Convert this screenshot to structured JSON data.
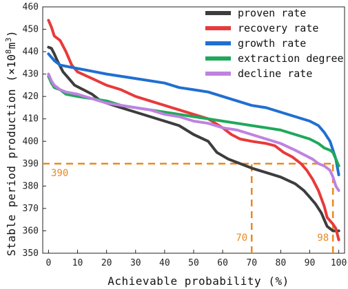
{
  "chart_data": {
    "type": "line",
    "xlabel": "Achievable probability (%)",
    "ylabel_main": "Stable period production (×10",
    "ylabel_exp": "8",
    "ylabel_unit": "m",
    "ylabel_unit_exp": "3",
    "ylabel_close": ")",
    "xlim": [
      -2,
      102
    ],
    "ylim": [
      350,
      460
    ],
    "x_ticks": [
      0,
      10,
      20,
      30,
      40,
      50,
      60,
      70,
      80,
      90,
      100
    ],
    "y_ticks": [
      350,
      360,
      370,
      380,
      390,
      400,
      410,
      420,
      430,
      440,
      450,
      460
    ],
    "legend_position": "top-right",
    "series": [
      {
        "name": "proven rate",
        "color": "#3d3d3d",
        "points": [
          [
            0,
            442
          ],
          [
            1,
            441.5
          ],
          [
            2,
            439
          ],
          [
            3,
            436
          ],
          [
            5,
            431
          ],
          [
            7,
            428
          ],
          [
            9,
            425
          ],
          [
            12,
            423
          ],
          [
            15,
            421
          ],
          [
            18,
            418
          ],
          [
            20,
            417
          ],
          [
            25,
            415
          ],
          [
            30,
            413
          ],
          [
            35,
            411
          ],
          [
            40,
            409
          ],
          [
            45,
            407
          ],
          [
            50,
            403
          ],
          [
            55,
            400
          ],
          [
            58,
            395
          ],
          [
            62,
            392
          ],
          [
            66,
            390
          ],
          [
            70,
            388
          ],
          [
            75,
            386
          ],
          [
            80,
            384
          ],
          [
            85,
            381
          ],
          [
            88,
            378
          ],
          [
            90,
            375
          ],
          [
            92,
            372
          ],
          [
            94,
            368
          ],
          [
            96,
            362
          ],
          [
            98,
            360
          ],
          [
            100,
            360
          ]
        ]
      },
      {
        "name": "recovery rate",
        "color": "#e83a3a",
        "points": [
          [
            0,
            454
          ],
          [
            1,
            451
          ],
          [
            2,
            447
          ],
          [
            4,
            445
          ],
          [
            6,
            440
          ],
          [
            8,
            434
          ],
          [
            10,
            431
          ],
          [
            15,
            428
          ],
          [
            20,
            425
          ],
          [
            25,
            423
          ],
          [
            30,
            420
          ],
          [
            35,
            418
          ],
          [
            40,
            416
          ],
          [
            45,
            414
          ],
          [
            50,
            412
          ],
          [
            55,
            410
          ],
          [
            60,
            406
          ],
          [
            63,
            403
          ],
          [
            66,
            401
          ],
          [
            70,
            400
          ],
          [
            75,
            399
          ],
          [
            78,
            398
          ],
          [
            81,
            395
          ],
          [
            84,
            393
          ],
          [
            87,
            390
          ],
          [
            89,
            387
          ],
          [
            91,
            383
          ],
          [
            93,
            378
          ],
          [
            95,
            371
          ],
          [
            96,
            366
          ],
          [
            98,
            363
          ],
          [
            99,
            361
          ],
          [
            100,
            356
          ]
        ]
      },
      {
        "name": "growth rate",
        "color": "#1f6fd1",
        "points": [
          [
            0,
            439
          ],
          [
            2,
            436
          ],
          [
            4,
            434
          ],
          [
            8,
            433
          ],
          [
            12,
            432
          ],
          [
            20,
            430
          ],
          [
            25,
            429
          ],
          [
            30,
            428
          ],
          [
            40,
            426
          ],
          [
            45,
            424
          ],
          [
            50,
            423
          ],
          [
            55,
            422
          ],
          [
            60,
            420
          ],
          [
            65,
            418
          ],
          [
            70,
            416
          ],
          [
            75,
            415
          ],
          [
            80,
            413
          ],
          [
            85,
            411
          ],
          [
            90,
            409
          ],
          [
            93,
            407
          ],
          [
            95,
            404
          ],
          [
            97,
            400
          ],
          [
            98,
            396
          ],
          [
            99,
            392
          ],
          [
            100,
            385
          ]
        ]
      },
      {
        "name": "extraction degree",
        "color": "#1fa85a",
        "points": [
          [
            0,
            429
          ],
          [
            1,
            426
          ],
          [
            2,
            424
          ],
          [
            4,
            423
          ],
          [
            6,
            421
          ],
          [
            10,
            420
          ],
          [
            15,
            419
          ],
          [
            20,
            418
          ],
          [
            25,
            416
          ],
          [
            30,
            415
          ],
          [
            35,
            414
          ],
          [
            40,
            413
          ],
          [
            45,
            412
          ],
          [
            50,
            411
          ],
          [
            55,
            410
          ],
          [
            60,
            409
          ],
          [
            65,
            408
          ],
          [
            70,
            407
          ],
          [
            75,
            406
          ],
          [
            80,
            405
          ],
          [
            85,
            403
          ],
          [
            90,
            401
          ],
          [
            93,
            399
          ],
          [
            95,
            397
          ],
          [
            97,
            396
          ],
          [
            98,
            395
          ],
          [
            99,
            392
          ],
          [
            100,
            389
          ]
        ]
      },
      {
        "name": "decline rate",
        "color": "#bf82e0",
        "points": [
          [
            0,
            430
          ],
          [
            1,
            427
          ],
          [
            2,
            425
          ],
          [
            4,
            423
          ],
          [
            6,
            422
          ],
          [
            10,
            421
          ],
          [
            15,
            419
          ],
          [
            20,
            417
          ],
          [
            25,
            416
          ],
          [
            30,
            415
          ],
          [
            35,
            414
          ],
          [
            40,
            412
          ],
          [
            45,
            411
          ],
          [
            50,
            409
          ],
          [
            55,
            408
          ],
          [
            60,
            406
          ],
          [
            65,
            405
          ],
          [
            70,
            403
          ],
          [
            75,
            401
          ],
          [
            80,
            399
          ],
          [
            85,
            396
          ],
          [
            88,
            394
          ],
          [
            91,
            392
          ],
          [
            93,
            390
          ],
          [
            95,
            389
          ],
          [
            97,
            387
          ],
          [
            98,
            384
          ],
          [
            99,
            380
          ],
          [
            100,
            378
          ]
        ]
      }
    ],
    "reference_lines": [
      {
        "axis": "y",
        "value": 390,
        "x_from": -2,
        "x_to": 100,
        "label": "390",
        "color": "#e8891e"
      },
      {
        "axis": "x",
        "value": 70,
        "y_from": 350,
        "y_to": 390,
        "label": "70",
        "color": "#e8891e"
      },
      {
        "axis": "x",
        "value": 98,
        "y_from": 350,
        "y_to": 390,
        "label": "98",
        "color": "#e8891e"
      }
    ]
  }
}
